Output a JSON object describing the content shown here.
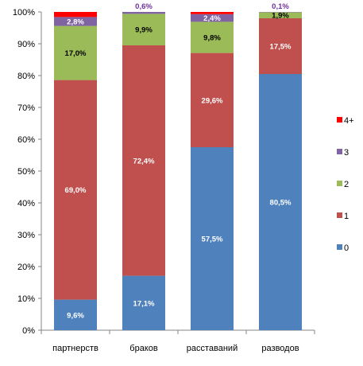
{
  "chart_data": {
    "type": "bar",
    "stacked": true,
    "percent": true,
    "categories": [
      "партнерств",
      "браков",
      "расставаний",
      "разводов"
    ],
    "series": [
      {
        "name": "0",
        "color": "#4F81BD",
        "values": [
          9.6,
          17.1,
          57.5,
          80.5
        ],
        "labels": [
          "9,6%",
          "17,1%",
          "57,5%",
          "80,5%"
        ],
        "label_color": "#ffffff"
      },
      {
        "name": "1",
        "color": "#C0504D",
        "values": [
          69.0,
          72.4,
          29.6,
          17.5
        ],
        "labels": [
          "69,0%",
          "72,4%",
          "29,6%",
          "17,5%"
        ],
        "label_color": "#ffffff"
      },
      {
        "name": "2",
        "color": "#9BBB59",
        "values": [
          17.0,
          9.9,
          9.8,
          1.9
        ],
        "labels": [
          "17,0%",
          "9,9%",
          "9,8%",
          "1,9%"
        ],
        "label_color": "#000000"
      },
      {
        "name": "3",
        "color": "#8064A2",
        "values": [
          2.8,
          0.6,
          2.4,
          0.1
        ],
        "labels": [
          "2,8%",
          "0,6%",
          "2,4%",
          "0,1%"
        ],
        "label_color": "#ffffff"
      },
      {
        "name": "4+",
        "color": "#FF0000",
        "values": [
          1.6,
          0.0,
          0.7,
          0.0
        ],
        "labels": [
          "",
          "",
          "",
          ""
        ],
        "label_color": "#ffffff"
      }
    ],
    "label_overrides": [
      {
        "series": 3,
        "category": 1,
        "position": "above",
        "color": "#7030A0"
      },
      {
        "series": 3,
        "category": 3,
        "position": "above",
        "color": "#7030A0"
      },
      {
        "series": 2,
        "category": 3,
        "position": "center",
        "color": "#000000"
      }
    ],
    "y_ticks": [
      "0%",
      "10%",
      "20%",
      "30%",
      "40%",
      "50%",
      "60%",
      "70%",
      "80%",
      "90%",
      "100%"
    ],
    "ylim": [
      0,
      100
    ],
    "grid": false,
    "legend": {
      "placement": "right",
      "order": [
        "4+",
        "3",
        "2",
        "1",
        "0"
      ]
    },
    "title": "",
    "xlabel": "",
    "ylabel": ""
  }
}
